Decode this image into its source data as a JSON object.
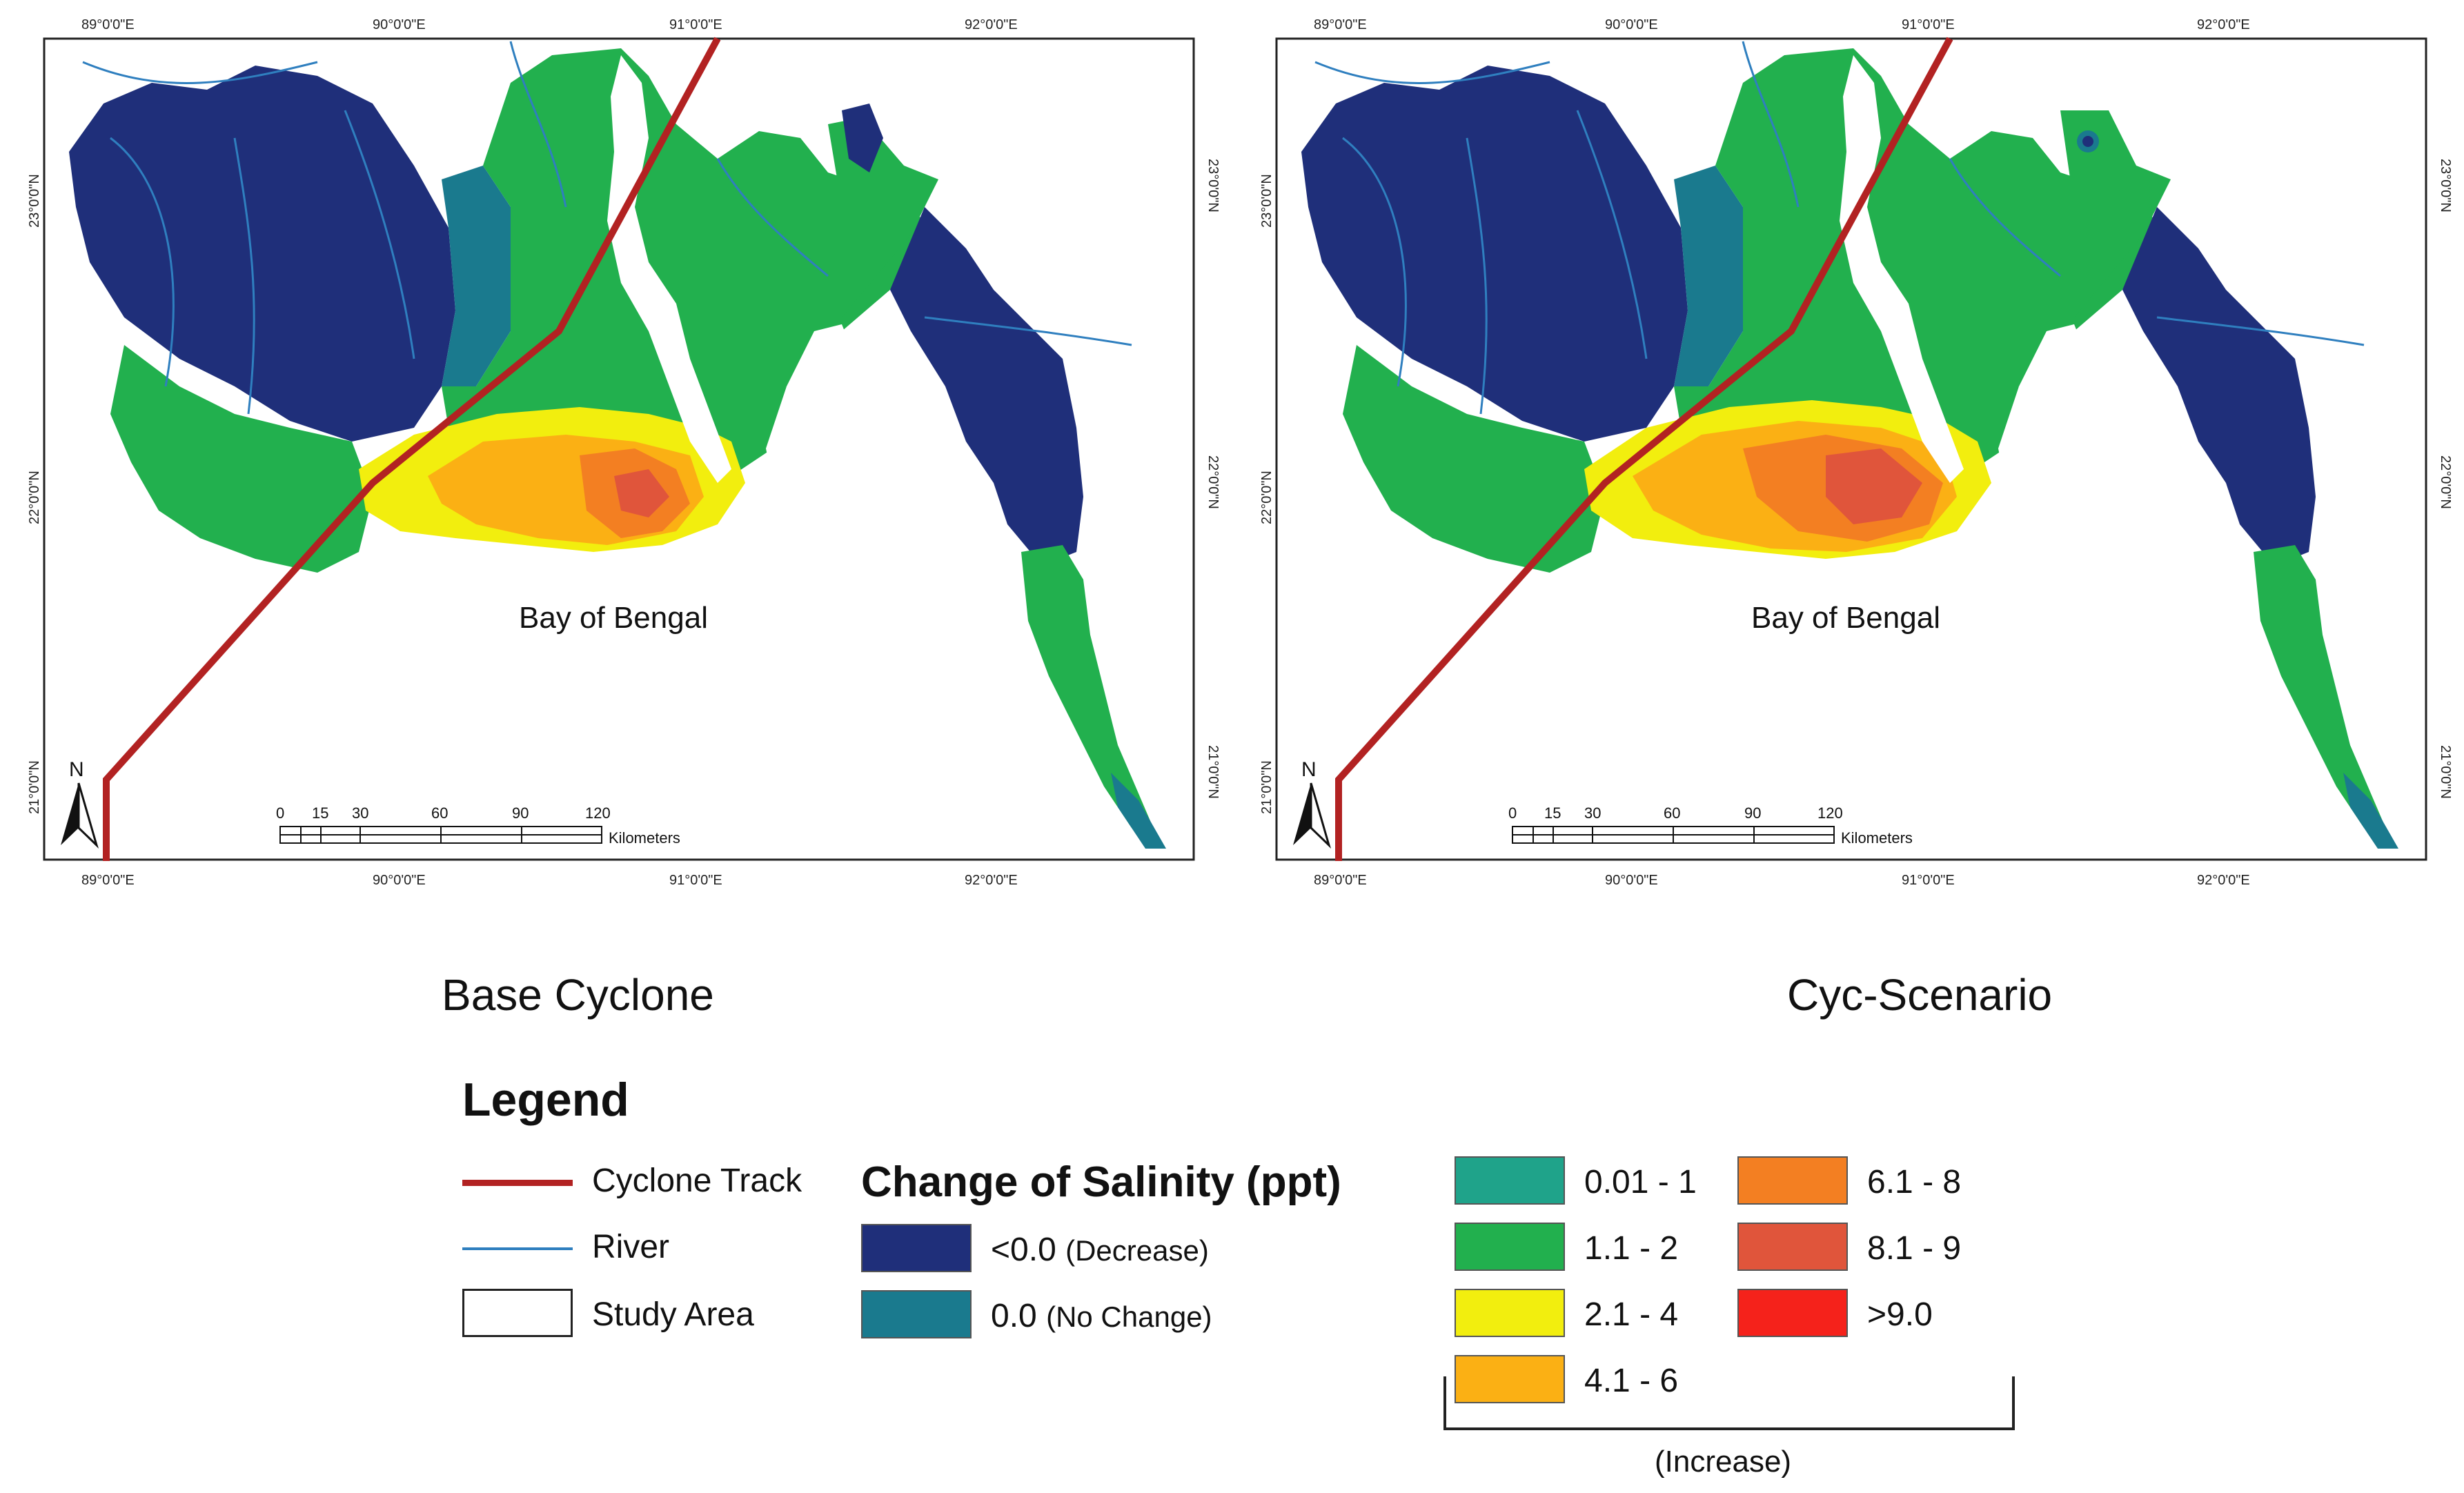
{
  "maps": [
    {
      "title": "Base Cyclone",
      "sea_label": "Bay of Bengal",
      "lon_ticks": [
        "89°0'0\"E",
        "90°0'0\"E",
        "91°0'0\"E",
        "92°0'0\"E"
      ],
      "lat_ticks": [
        "23°0'0\"N",
        "22°0'0\"N",
        "21°0'0\"N"
      ],
      "north_label": "N",
      "scale_numbers": [
        "0",
        "15",
        "30",
        "60",
        "90",
        "120"
      ],
      "scale_unit": "Kilometers"
    },
    {
      "title": "Cyc-Scenario",
      "sea_label": "Bay of Bengal",
      "lon_ticks": [
        "89°0'0\"E",
        "90°0'0\"E",
        "91°0'0\"E",
        "92°0'0\"E"
      ],
      "lat_ticks": [
        "23°0'0\"N",
        "22°0'0\"N",
        "21°0'0\"N"
      ],
      "north_label": "N",
      "scale_numbers": [
        "0",
        "15",
        "30",
        "60",
        "90",
        "120"
      ],
      "scale_unit": "Kilometers"
    }
  ],
  "legend": {
    "heading": "Legend",
    "symbols": [
      {
        "label": "Cyclone Track",
        "color": "#b22222"
      },
      {
        "label": "River",
        "color": "#2f7fbf"
      },
      {
        "label": "Study Area",
        "color": "#ffffff"
      }
    ],
    "salinity_title": "Change of Salinity (ppt)",
    "neutral_classes": [
      {
        "value": "<0.0",
        "note": "(Decrease)",
        "color": "#1f2f7a"
      },
      {
        "value": "0.0",
        "note": "(No Change)",
        "color": "#1a7a8e"
      }
    ],
    "increase_classes": [
      {
        "label": "0.01 - 1",
        "color": "#1fa38a"
      },
      {
        "label": "1.1 - 2",
        "color": "#22b04e"
      },
      {
        "label": "2.1 - 4",
        "color": "#f2ee0e"
      },
      {
        "label": "4.1 - 6",
        "color": "#fbb014"
      },
      {
        "label": "6.1 - 8",
        "color": "#f37f22"
      },
      {
        "label": "8.1 - 9",
        "color": "#e0553b"
      },
      {
        "label": ">9.0",
        "color": "#f5221b"
      }
    ],
    "increase_label": "(Increase)"
  }
}
